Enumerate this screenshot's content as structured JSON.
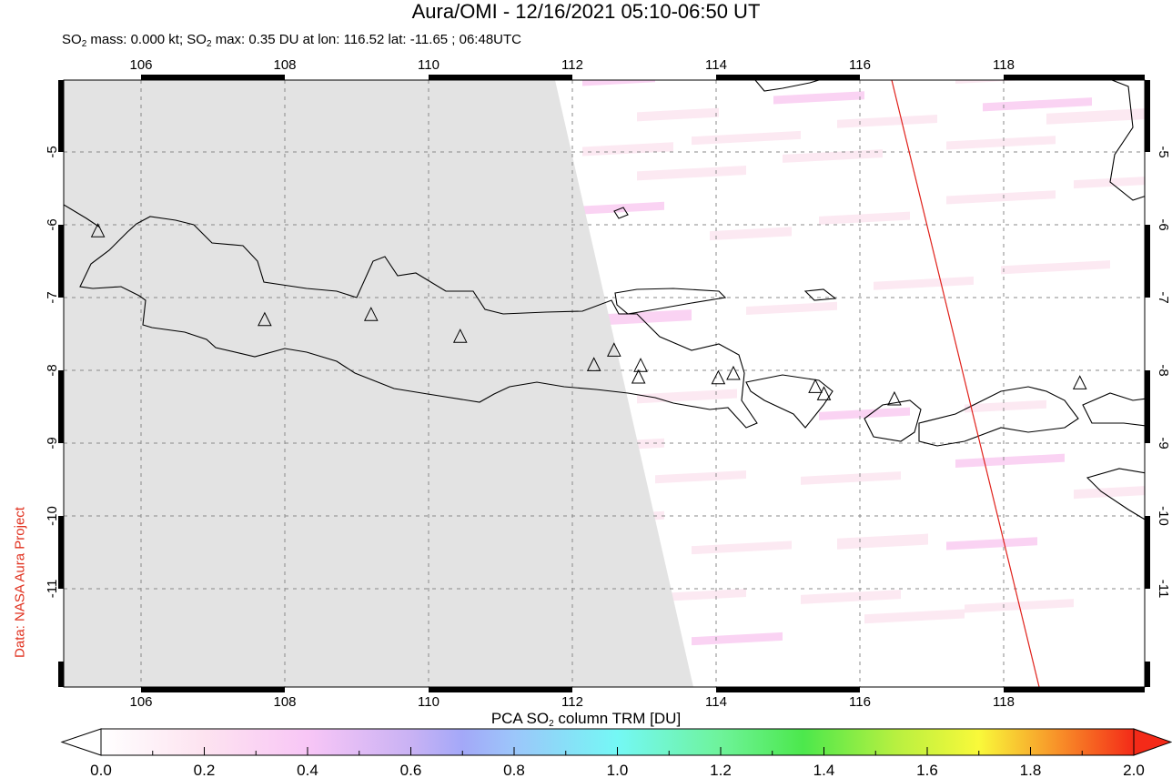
{
  "header": {
    "title": "Aura/OMI - 12/16/2021 05:10-06:50 UT",
    "subtitle_parts": [
      "SO",
      "2",
      " mass: 0.000 kt; SO",
      "2",
      " max: 0.35 DU at lon: 116.52 lat: -11.65 ; 06:48UTC"
    ]
  },
  "credit": "Data: NASA Aura Project",
  "map": {
    "lon_ticks": [
      "106",
      "108",
      "110",
      "112",
      "114",
      "116",
      "118"
    ],
    "lat_ticks": [
      "-5",
      "-6",
      "-7",
      "-8",
      "-9",
      "-10",
      "-11"
    ],
    "gridlines": true,
    "no_data_color": "#e3e3e3",
    "coastline_color": "#000000",
    "orbit_track_color": "#e0201a",
    "volcano_marker": "triangle-outline",
    "volcanoes": [
      {
        "lon": 105.4,
        "lat": -6.09
      },
      {
        "lon": 107.72,
        "lat": -7.31
      },
      {
        "lon": 109.2,
        "lat": -7.24
      },
      {
        "lon": 110.44,
        "lat": -7.54
      },
      {
        "lon": 112.3,
        "lat": -7.93
      },
      {
        "lon": 112.58,
        "lat": -7.73
      },
      {
        "lon": 112.95,
        "lat": -7.94
      },
      {
        "lon": 112.92,
        "lat": -8.1
      },
      {
        "lon": 114.03,
        "lat": -8.11
      },
      {
        "lon": 114.24,
        "lat": -8.05
      },
      {
        "lon": 115.38,
        "lat": -8.23
      },
      {
        "lon": 115.5,
        "lat": -8.33
      },
      {
        "lon": 116.48,
        "lat": -8.4
      },
      {
        "lon": 119.06,
        "lat": -8.18
      }
    ]
  },
  "colorbar": {
    "title_parts": [
      "PCA SO",
      "2",
      " column TRM [DU]"
    ],
    "ticks": [
      "0.0",
      "0.2",
      "0.4",
      "0.6",
      "0.8",
      "1.0",
      "1.2",
      "1.4",
      "1.6",
      "1.8",
      "2.0"
    ],
    "range": [
      0.0,
      2.0
    ],
    "colors": [
      "#ffffff",
      "#fde3f0",
      "#f8c6f6",
      "#c9b2f4",
      "#a3a8f8",
      "#9cc6fa",
      "#74f8f5",
      "#6ef39a",
      "#4ce84c",
      "#b8f040",
      "#f9f93a",
      "#f89a2a",
      "#f42a18"
    ]
  }
}
